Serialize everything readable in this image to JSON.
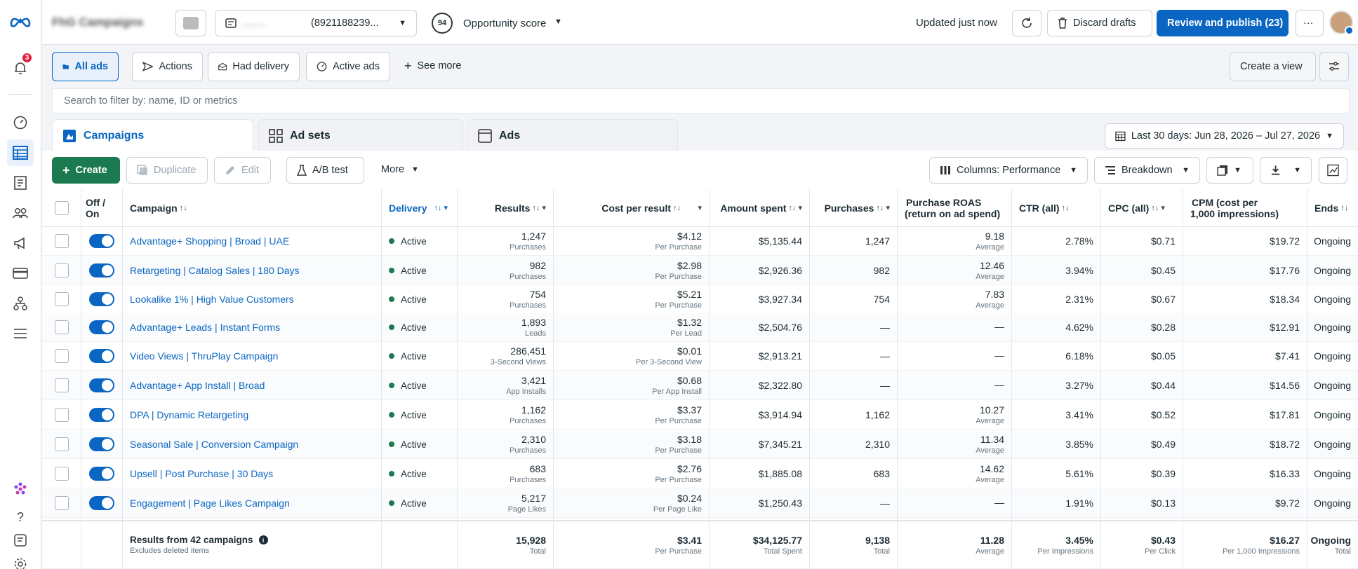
{
  "app": {
    "account_name": "FhG Campaigns",
    "account_id": "(8921188239...",
    "opportunity_score": "94",
    "opportunity_label": "Opportunity score",
    "updated": "Updated just now",
    "discard": "Discard drafts",
    "review": "Review and publish (23)",
    "notifications": "3"
  },
  "filters": {
    "all_ads": "All ads",
    "actions": "Actions",
    "had_delivery": "Had delivery",
    "active_ads": "Active ads",
    "see_more": "See more",
    "create_view": "Create a view",
    "search_placeholder": "Search to filter by: name, ID or metrics"
  },
  "tabs": {
    "campaigns": "Campaigns",
    "ad_sets": "Ad sets",
    "ads": "Ads",
    "date_range": "Last 30 days: Jun 28, 2026 – Jul 27, 2026"
  },
  "toolbar": {
    "create": "Create",
    "duplicate": "Duplicate",
    "edit": "Edit",
    "ab_test": "A/B test",
    "more": "More",
    "columns": "Columns: Performance",
    "breakdown": "Breakdown"
  },
  "columns": {
    "off_on": "Off / On",
    "campaign": "Campaign",
    "delivery": "Delivery",
    "results": "Results",
    "cost_per_result": "Cost per result",
    "amount_spent": "Amount spent",
    "purchases": "Purchases",
    "roas_1": "Purchase ROAS",
    "roas_2": "(return on ad spend)",
    "ctr": "CTR (all)",
    "cpc": "CPC (all)",
    "cpm_1": "CPM (cost per",
    "cpm_2": "1,000 impressions)",
    "ends": "Ends"
  },
  "rows": [
    {
      "name": "Advantage+ Shopping | Broad | UAE",
      "delivery": "Active",
      "results": "1,247",
      "results_sub": "Purchases",
      "cost": "$4.12",
      "cost_sub": "Per Purchase",
      "spent": "$5,135.44",
      "purchases": "1,247",
      "roas": "9.18",
      "roas_sub": "Average",
      "ctr": "2.78%",
      "cpc": "$0.71",
      "cpm": "$19.72",
      "ends": "Ongoing"
    },
    {
      "name": "Retargeting | Catalog Sales | 180 Days",
      "delivery": "Active",
      "results": "982",
      "results_sub": "Purchases",
      "cost": "$2.98",
      "cost_sub": "Per Purchase",
      "spent": "$2,926.36",
      "purchases": "982",
      "roas": "12.46",
      "roas_sub": "Average",
      "ctr": "3.94%",
      "cpc": "$0.45",
      "cpm": "$17.76",
      "ends": "Ongoing"
    },
    {
      "name": "Lookalike 1% | High Value Customers",
      "delivery": "Active",
      "results": "754",
      "results_sub": "Purchases",
      "cost": "$5.21",
      "cost_sub": "Per Purchase",
      "spent": "$3,927.34",
      "purchases": "754",
      "roas": "7.83",
      "roas_sub": "Average",
      "ctr": "2.31%",
      "cpc": "$0.67",
      "cpm": "$18.34",
      "ends": "Ongoing"
    },
    {
      "name": "Advantage+ Leads | Instant Forms",
      "delivery": "Active",
      "results": "1,893",
      "results_sub": "Leads",
      "cost": "$1.32",
      "cost_sub": "Per Lead",
      "spent": "$2,504.76",
      "purchases": "—",
      "roas": "—",
      "roas_sub": "",
      "ctr": "4.62%",
      "cpc": "$0.28",
      "cpm": "$12.91",
      "ends": "Ongoing"
    },
    {
      "name": "Video Views | ThruPlay Campaign",
      "delivery": "Active",
      "results": "286,451",
      "results_sub": "3-Second Views",
      "cost": "$0.01",
      "cost_sub": "Per 3-Second View",
      "spent": "$2,913.21",
      "purchases": "—",
      "roas": "—",
      "roas_sub": "",
      "ctr": "6.18%",
      "cpc": "$0.05",
      "cpm": "$7.41",
      "ends": "Ongoing"
    },
    {
      "name": "Advantage+ App Install | Broad",
      "delivery": "Active",
      "results": "3,421",
      "results_sub": "App Installs",
      "cost": "$0.68",
      "cost_sub": "Per App Install",
      "spent": "$2,322.80",
      "purchases": "—",
      "roas": "—",
      "roas_sub": "",
      "ctr": "3.27%",
      "cpc": "$0.44",
      "cpm": "$14.56",
      "ends": "Ongoing"
    },
    {
      "name": "DPA | Dynamic Retargeting",
      "delivery": "Active",
      "results": "1,162",
      "results_sub": "Purchases",
      "cost": "$3.37",
      "cost_sub": "Per Purchase",
      "spent": "$3,914.94",
      "purchases": "1,162",
      "roas": "10.27",
      "roas_sub": "Average",
      "ctr": "3.41%",
      "cpc": "$0.52",
      "cpm": "$17.81",
      "ends": "Ongoing"
    },
    {
      "name": "Seasonal Sale | Conversion Campaign",
      "delivery": "Active",
      "results": "2,310",
      "results_sub": "Purchases",
      "cost": "$3.18",
      "cost_sub": "Per Purchase",
      "spent": "$7,345.21",
      "purchases": "2,310",
      "roas": "11.34",
      "roas_sub": "Average",
      "ctr": "3.85%",
      "cpc": "$0.49",
      "cpm": "$18.72",
      "ends": "Ongoing"
    },
    {
      "name": "Upsell | Post Purchase | 30 Days",
      "delivery": "Active",
      "results": "683",
      "results_sub": "Purchases",
      "cost": "$2.76",
      "cost_sub": "Per Purchase",
      "spent": "$1,885.08",
      "purchases": "683",
      "roas": "14.62",
      "roas_sub": "Average",
      "ctr": "5.61%",
      "cpc": "$0.39",
      "cpm": "$16.33",
      "ends": "Ongoing"
    },
    {
      "name": "Engagement | Page Likes Campaign",
      "delivery": "Active",
      "results": "5,217",
      "results_sub": "Page Likes",
      "cost": "$0.24",
      "cost_sub": "Per Page Like",
      "spent": "$1,250.43",
      "purchases": "—",
      "roas": "—",
      "roas_sub": "",
      "ctr": "1.91%",
      "cpc": "$0.13",
      "cpm": "$9.72",
      "ends": "Ongoing"
    }
  ],
  "totals": {
    "label": "Results from 42 campaigns",
    "sub": "Excludes deleted items",
    "results": "15,928",
    "results_sub": "Total",
    "cost": "$3.41",
    "cost_sub": "Per Purchase",
    "spent": "$34,125.77",
    "spent_sub": "Total Spent",
    "purchases": "9,138",
    "purchases_sub": "Total",
    "roas": "11.28",
    "roas_sub": "Average",
    "ctr": "3.45%",
    "ctr_sub": "Per Impressions",
    "cpc": "$0.43",
    "cpc_sub": "Per Click",
    "cpm": "$16.27",
    "cpm_sub": "Per 1,000 Impressions",
    "ends": "Ongoing",
    "ends_sub": "Total"
  },
  "colors": {
    "accent": "#0a66c2",
    "create": "#1b7a4f",
    "active_dot": "#1b7a4f",
    "badge": "#e41e3f"
  }
}
